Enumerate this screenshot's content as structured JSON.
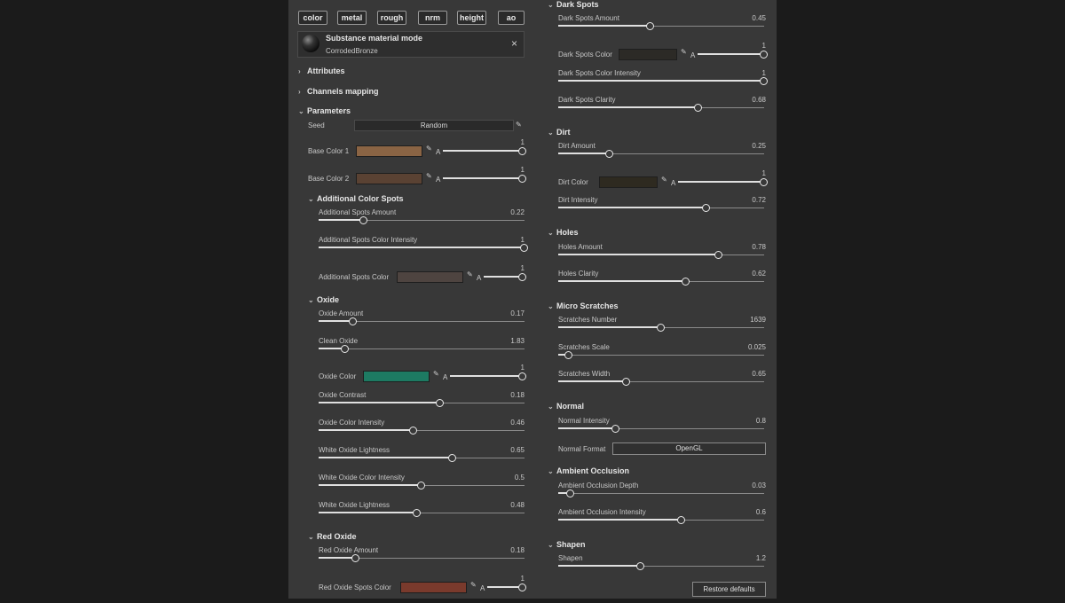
{
  "channels": [
    "color",
    "metal",
    "rough",
    "nrm",
    "height",
    "ao"
  ],
  "material": {
    "title": "Substance material mode",
    "name": "CorrodedBronze",
    "close": "×"
  },
  "sections": {
    "attributes": "Attributes",
    "channels_mapping": "Channels mapping",
    "parameters": "Parameters",
    "additional_color_spots": "Additional Color Spots",
    "oxide": "Oxide",
    "red_oxide": "Red Oxide",
    "dark_spots": "Dark Spots",
    "dirt": "Dirt",
    "holes": "Holes",
    "micro_scratches": "Micro Scratches",
    "normal": "Normal",
    "ambient_occlusion": "Ambient Occlusion",
    "shapen": "Shapen"
  },
  "seed": {
    "label": "Seed",
    "value": "Random"
  },
  "alpha_label": "A",
  "left_params": [
    {
      "label": "Base Color 1",
      "kind": "color",
      "color": "#8a6444",
      "value": "1",
      "fraction": 1.0
    },
    {
      "label": "Base Color 2",
      "kind": "color",
      "color": "#5a4233",
      "value": "1",
      "fraction": 1.0
    },
    {
      "label": "Additional Spots Amount",
      "kind": "slider",
      "value": "0.22",
      "fraction": 0.22
    },
    {
      "label": "Additional Spots Color Intensity",
      "kind": "slider",
      "value": "1",
      "fraction": 1.0
    },
    {
      "label": "Additional Spots Color",
      "kind": "color",
      "color": "#4e4440",
      "value": "1",
      "fraction": 1.0
    },
    {
      "label": "Oxide Amount",
      "kind": "slider",
      "value": "0.17",
      "fraction": 0.17
    },
    {
      "label": "Clean Oxide",
      "kind": "slider",
      "value": "1.83",
      "fraction": 0.13
    },
    {
      "label": "Oxide Color",
      "kind": "color",
      "color": "#1d7a62",
      "value": "1",
      "fraction": 1.0
    },
    {
      "label": "Oxide Contrast",
      "kind": "slider",
      "value": "0.18",
      "fraction": 0.59
    },
    {
      "label": "Oxide Color Intensity",
      "kind": "slider",
      "value": "0.46",
      "fraction": 0.46
    },
    {
      "label": "White Oxide Lightness",
      "kind": "slider",
      "value": "0.65",
      "fraction": 0.65
    },
    {
      "label": "White Oxide Color Intensity",
      "kind": "slider",
      "value": "0.5",
      "fraction": 0.5
    },
    {
      "label": "White Oxide Lightness",
      "kind": "slider",
      "value": "0.48",
      "fraction": 0.48
    },
    {
      "label": "Red Oxide Amount",
      "kind": "slider",
      "value": "0.18",
      "fraction": 0.18
    },
    {
      "label": "Red Oxide Spots Color",
      "kind": "color",
      "color": "#7a3a2c",
      "value": "1",
      "fraction": 1.0
    }
  ],
  "right_params": [
    {
      "label": "Dark Spots Amount",
      "kind": "slider",
      "value": "0.45",
      "fraction": 0.45
    },
    {
      "label": "Dark Spots Color",
      "kind": "color",
      "color": "#2c2a26",
      "value": "1",
      "fraction": 1.0
    },
    {
      "label": "Dark Spots Color Intensity",
      "kind": "slider",
      "value": "1",
      "fraction": 1.0
    },
    {
      "label": "Dark Spots Clarity",
      "kind": "slider",
      "value": "0.68",
      "fraction": 0.68
    },
    {
      "label": "Dirt Amount",
      "kind": "slider",
      "value": "0.25",
      "fraction": 0.25
    },
    {
      "label": "Dirt Color",
      "kind": "color",
      "color": "#2e2a20",
      "value": "1",
      "fraction": 1.0
    },
    {
      "label": "Dirt Intensity",
      "kind": "slider",
      "value": "0.72",
      "fraction": 0.72
    },
    {
      "label": "Holes Amount",
      "kind": "slider",
      "value": "0.78",
      "fraction": 0.78
    },
    {
      "label": "Holes Clarity",
      "kind": "slider",
      "value": "0.62",
      "fraction": 0.62
    },
    {
      "label": "Scratches Number",
      "kind": "slider",
      "value": "1639",
      "fraction": 0.5
    },
    {
      "label": "Scratches Scale",
      "kind": "slider",
      "value": "0.025",
      "fraction": 0.05
    },
    {
      "label": "Scratches Width",
      "kind": "slider",
      "value": "0.65",
      "fraction": 0.33
    },
    {
      "label": "Normal Intensity",
      "kind": "slider",
      "value": "0.8",
      "fraction": 0.28
    },
    {
      "label": "Ambient Occlusion Depth",
      "kind": "slider",
      "value": "0.03",
      "fraction": 0.06
    },
    {
      "label": "Ambient Occlusion Intensity",
      "kind": "slider",
      "value": "0.6",
      "fraction": 0.6
    },
    {
      "label": "Shapen",
      "kind": "slider",
      "value": "1.2",
      "fraction": 0.4
    }
  ],
  "normal_format": {
    "label": "Normal Format",
    "value": "OpenGL"
  },
  "restore_button": "Restore defaults"
}
